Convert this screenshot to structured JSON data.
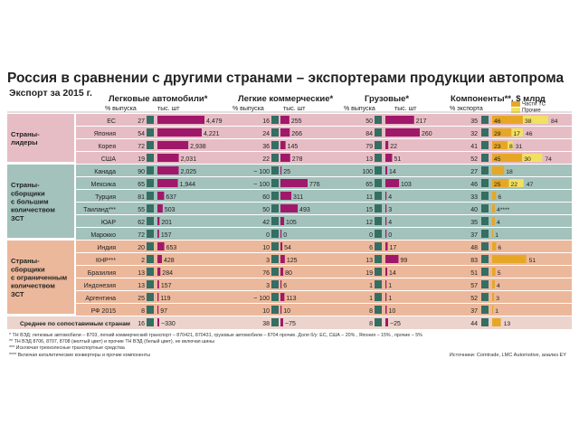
{
  "title": "Россия в сравнении с другими странами – экспортерами продукции автопрома",
  "subtitle": "Экспорт за 2015 г.",
  "headers": {
    "cars": "Легковые автомобили*",
    "lcv": "Легкие коммерческие*",
    "trucks": "Грузовые*",
    "components": "Компоненты**, $ млрд",
    "pct_output": "% выпуска",
    "th_units": "тыс. шт",
    "pct_export": "% экспорта"
  },
  "legend": {
    "parts_label": "Части ТС",
    "other_label": "Прочие"
  },
  "colors": {
    "leaders_bg": "#e7bdc5",
    "assemblers_bg": "#a3c2bc",
    "limited_bg": "#ecb89b",
    "avg_bg": "#ecd3cb",
    "magenta": "#a0186a",
    "green": "#356e63",
    "orange": "#e7a726",
    "yellow": "#f2e063"
  },
  "groups": [
    {
      "label": "Страны-лидеры",
      "lines": [
        "Страны-",
        "лидеры"
      ]
    },
    {
      "label": "Страны-сборщики с большим количеством ЗСТ",
      "lines": [
        "Страны-",
        "сборщики",
        "с большим",
        "количеством",
        "ЗСТ"
      ]
    },
    {
      "label": "Страны-сборщики с ограниченным количеством ЗСТ",
      "lines": [
        "Страны-",
        "сборщики",
        "с ограниченным",
        "количеством",
        "ЗСТ"
      ]
    }
  ],
  "chart_data": {
    "type": "table",
    "rows": [
      {
        "group": 0,
        "country": "ЕС",
        "cars_pct": "27",
        "cars_th": "4,479",
        "lcv_pct": "16",
        "lcv_th": "255",
        "trucks_pct": "50",
        "trucks_th": "217",
        "exp_pct": "35",
        "parts": 46,
        "other": 38,
        "total": 84,
        "parts_label": "46",
        "other_label": "38",
        "total_label": "84"
      },
      {
        "group": 0,
        "country": "Япония",
        "cars_pct": "54",
        "cars_th": "4,221",
        "lcv_pct": "24",
        "lcv_th": "266",
        "trucks_pct": "84",
        "trucks_th": "260",
        "exp_pct": "32",
        "parts": 29,
        "other": 17,
        "total": 46,
        "parts_label": "29",
        "other_label": "17",
        "total_label": "46"
      },
      {
        "group": 0,
        "country": "Корея",
        "cars_pct": "72",
        "cars_th": "2,938",
        "lcv_pct": "36",
        "lcv_th": "145",
        "trucks_pct": "79",
        "trucks_th": "22",
        "exp_pct": "41",
        "parts": 23,
        "other": 8,
        "total": 31,
        "parts_label": "23",
        "other_label": "8",
        "total_label": "31"
      },
      {
        "group": 0,
        "country": "США",
        "cars_pct": "19",
        "cars_th": "2,031",
        "lcv_pct": "22",
        "lcv_th": "278",
        "trucks_pct": "13",
        "trucks_th": "51",
        "exp_pct": "52",
        "parts": 45,
        "other": 30,
        "total": 74,
        "parts_label": "45",
        "other_label": "30",
        "total_label": "74"
      },
      {
        "group": 1,
        "country": "Канада",
        "cars_pct": "90",
        "cars_th": "2,025",
        "lcv_pct": "~ 100",
        "lcv_th": "25",
        "trucks_pct": "100",
        "trucks_th": "14",
        "exp_pct": "27",
        "parts": 18,
        "other": 0,
        "total": 18,
        "parts_label": "18",
        "other_label": "",
        "total_label": ""
      },
      {
        "group": 1,
        "country": "Мексика",
        "cars_pct": "65",
        "cars_th": "1,944",
        "lcv_pct": "~ 100",
        "lcv_th": "776",
        "trucks_pct": "65",
        "trucks_th": "103",
        "exp_pct": "46",
        "parts": 25,
        "other": 22,
        "total": 47,
        "parts_label": "25",
        "other_label": "22",
        "total_label": "47"
      },
      {
        "group": 1,
        "country": "Турция",
        "cars_pct": "81",
        "cars_th": "637",
        "lcv_pct": "60",
        "lcv_th": "311",
        "trucks_pct": "11",
        "trucks_th": "4",
        "exp_pct": "33",
        "parts": 6,
        "other": 0,
        "total": 6,
        "parts_label": "6",
        "other_label": "",
        "total_label": ""
      },
      {
        "group": 1,
        "country": "Таиланд***",
        "cars_pct": "55",
        "cars_th": "503",
        "lcv_pct": "50",
        "lcv_th": "493",
        "trucks_pct": "15",
        "trucks_th": "3",
        "exp_pct": "40",
        "parts": 4,
        "other": 0,
        "total": 4,
        "parts_label": "4****",
        "other_label": "",
        "total_label": ""
      },
      {
        "group": 1,
        "country": "ЮАР",
        "cars_pct": "62",
        "cars_th": "201",
        "lcv_pct": "42",
        "lcv_th": "105",
        "trucks_pct": "12",
        "trucks_th": "4",
        "exp_pct": "35",
        "parts": 4,
        "other": 0,
        "total": 4,
        "parts_label": "4",
        "other_label": "",
        "total_label": ""
      },
      {
        "group": 1,
        "country": "Марокко",
        "cars_pct": "72",
        "cars_th": "157",
        "lcv_pct": "0",
        "lcv_th": "0",
        "trucks_pct": "0",
        "trucks_th": "0",
        "exp_pct": "37",
        "parts": 1,
        "other": 0,
        "total": 1,
        "parts_label": "1",
        "other_label": "",
        "total_label": ""
      },
      {
        "group": 2,
        "country": "Индия",
        "cars_pct": "20",
        "cars_th": "653",
        "lcv_pct": "10",
        "lcv_th": "54",
        "trucks_pct": "6",
        "trucks_th": "17",
        "exp_pct": "48",
        "parts": 6,
        "other": 0,
        "total": 6,
        "parts_label": "6",
        "other_label": "",
        "total_label": ""
      },
      {
        "group": 2,
        "country": "КНР***",
        "cars_pct": "2",
        "cars_th": "428",
        "lcv_pct": "3",
        "lcv_th": "125",
        "trucks_pct": "13",
        "trucks_th": "99",
        "exp_pct": "83",
        "parts": 51,
        "other": 0,
        "total": 51,
        "parts_label": "",
        "other_label": "",
        "total_label": "51"
      },
      {
        "group": 2,
        "country": "Бразилия",
        "cars_pct": "13",
        "cars_th": "284",
        "lcv_pct": "76",
        "lcv_th": "80",
        "trucks_pct": "19",
        "trucks_th": "14",
        "exp_pct": "51",
        "parts": 5,
        "other": 0,
        "total": 5,
        "parts_label": "5",
        "other_label": "",
        "total_label": ""
      },
      {
        "group": 2,
        "country": "Индонезия",
        "cars_pct": "13",
        "cars_th": "157",
        "lcv_pct": "3",
        "lcv_th": "6",
        "trucks_pct": "1",
        "trucks_th": "1",
        "exp_pct": "57",
        "parts": 4,
        "other": 0,
        "total": 4,
        "parts_label": "4",
        "other_label": "",
        "total_label": ""
      },
      {
        "group": 2,
        "country": "Аргентина",
        "cars_pct": "25",
        "cars_th": "119",
        "lcv_pct": "~ 100",
        "lcv_th": "113",
        "trucks_pct": "1",
        "trucks_th": "1",
        "exp_pct": "52",
        "parts": 3,
        "other": 0,
        "total": 3,
        "parts_label": "3",
        "other_label": "",
        "total_label": ""
      },
      {
        "group": 2,
        "country": "РФ 2015",
        "cars_pct": "8",
        "cars_th": "97",
        "lcv_pct": "10",
        "lcv_th": "10",
        "trucks_pct": "8",
        "trucks_th": "10",
        "exp_pct": "37",
        "parts": 1,
        "other": 0,
        "total": 1,
        "parts_label": "1",
        "other_label": "",
        "total_label": ""
      }
    ],
    "average": {
      "label": "Среднее по сопоставимым странам",
      "cars_pct": "16",
      "cars_th": "~330",
      "lcv_pct": "38",
      "lcv_th": "~75",
      "trucks_pct": "8",
      "trucks_th": "~25",
      "exp_pct": "44",
      "parts": 13,
      "other": 0,
      "total": 13,
      "parts_label": "13"
    }
  },
  "notes": [
    "* ТН ВЭД: легковые автомобили – 8703, легкий коммерческий транспорт – 870421, 870431, грузовые автомобили – 8704 прочие. Доля б/у: ЕС, США – 20% , Япония – 15% , прочие – 5%",
    "** ТН ВЭД 8706, 8707, 8708 (желтый цвет) и прочие ТН ВЭД (белый цвет), не включая шины",
    "*** Исключая трехколесные транспортные средства",
    "**** Включая каталитические конвертеры и прочие компоненты"
  ],
  "source": "Источники: Comtrade, LMC Automotive, анализ EY"
}
